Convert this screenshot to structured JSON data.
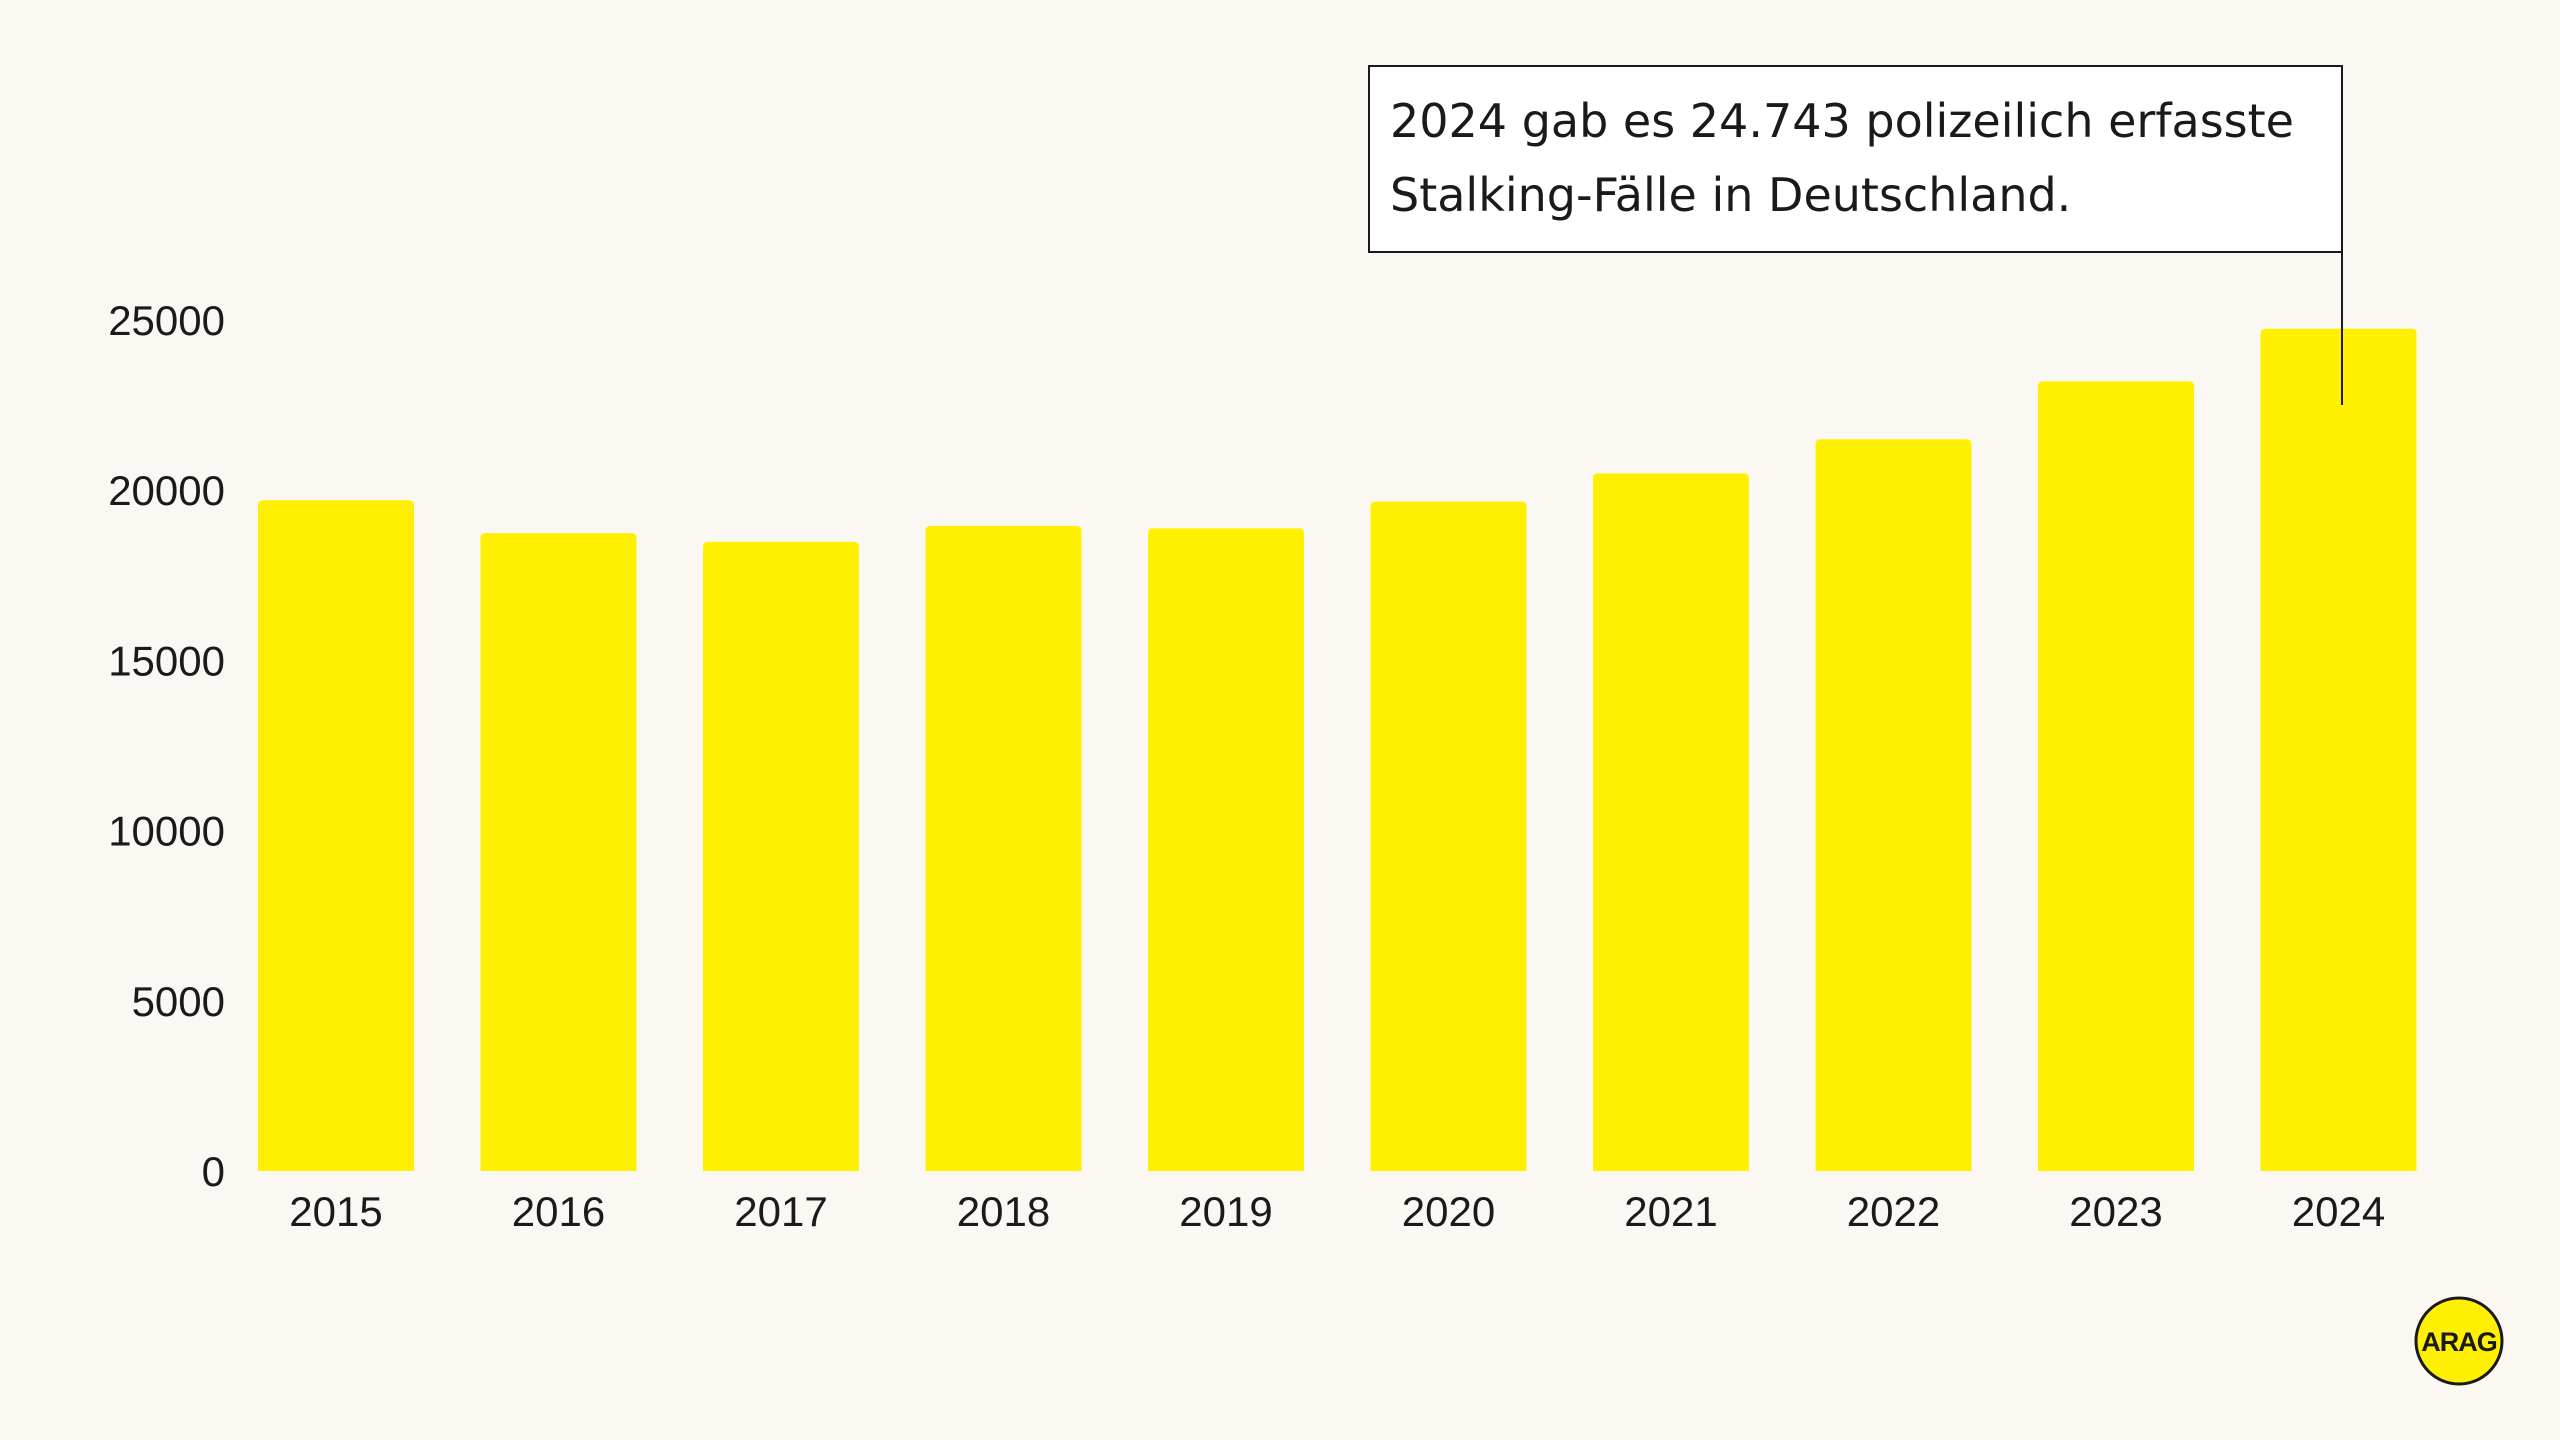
{
  "chart_data": {
    "type": "bar",
    "title": "",
    "xlabel": "",
    "ylabel": "",
    "categories": [
      "2015",
      "2016",
      "2017",
      "2018",
      "2019",
      "2020",
      "2021",
      "2022",
      "2023",
      "2024"
    ],
    "values": [
      19704,
      18739,
      18483,
      18948,
      18880,
      19665,
      20496,
      21497,
      23196,
      24743
    ],
    "ylim": [
      0,
      25000
    ],
    "yticks": [
      "0",
      "5000",
      "10000",
      "15000",
      "20000",
      "25000"
    ],
    "grid": false,
    "legend": "none",
    "bar_color": "#FFEF00",
    "annotation": {
      "category": "2024",
      "lines": [
        "2024 gab es 24.743 polizeilich erfasste",
        "Stalking-Fälle in Deutschland."
      ]
    }
  },
  "colors": {
    "background": "#FBF8F3",
    "text": "#1A1A1A",
    "logo_fill": "#FFEF00"
  },
  "logo": {
    "text": "ARAG",
    "icon": "arag-logo-icon"
  }
}
